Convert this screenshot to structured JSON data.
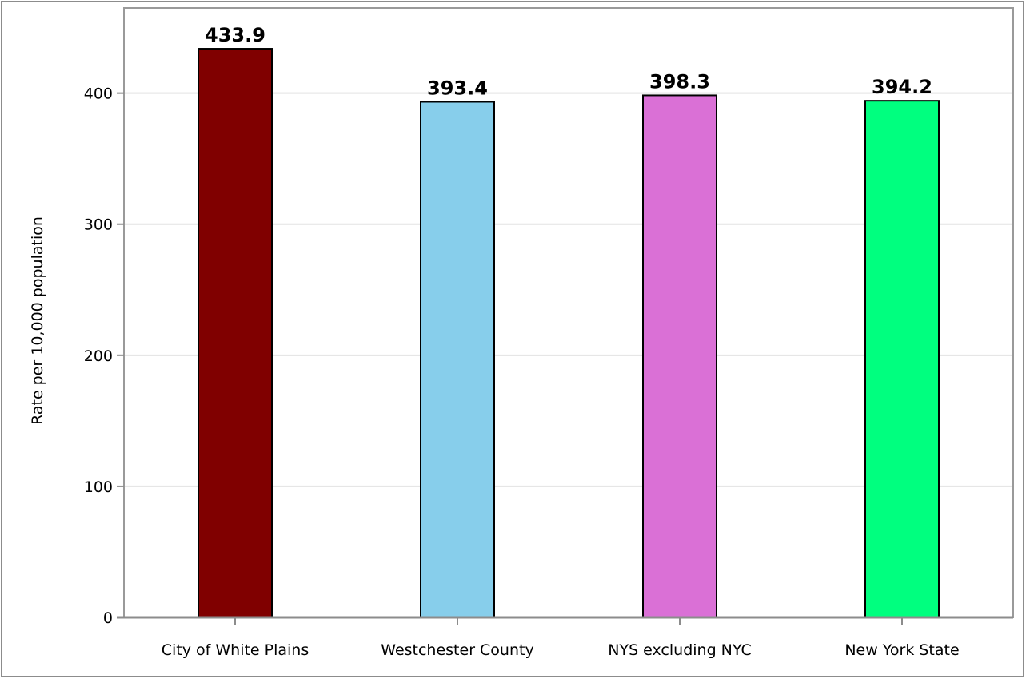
{
  "chart_data": {
    "type": "bar",
    "title": "",
    "xlabel": "",
    "ylabel": "Rate per 10,000 population",
    "categories": [
      "City of White Plains",
      "Westchester County",
      "NYS excluding NYC",
      "New York State"
    ],
    "values": [
      433.9,
      393.4,
      398.3,
      394.2
    ],
    "value_labels": [
      "433.9",
      "393.4",
      "398.3",
      "394.2"
    ],
    "colors": [
      "#800000",
      "#87ceeb",
      "#da70d6",
      "#00ff7f"
    ],
    "ylim": [
      0,
      465
    ],
    "yticks": [
      0,
      100,
      200,
      300,
      400
    ],
    "grid": true,
    "legend": "none"
  }
}
